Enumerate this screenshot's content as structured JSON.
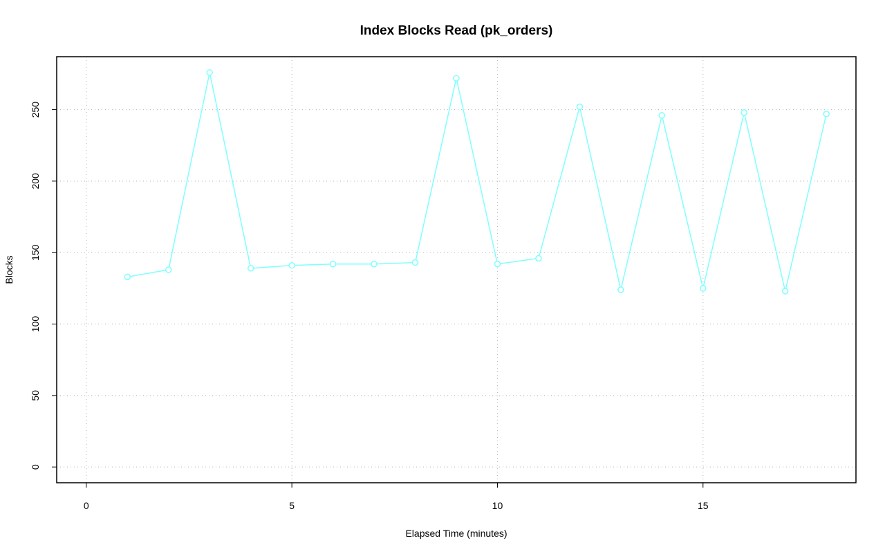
{
  "chart_data": {
    "type": "line",
    "title": "Index Blocks Read (pk_orders)",
    "x_label": "Elapsed Time (minutes)",
    "y_label": "Blocks",
    "x": [
      1,
      2,
      3,
      4,
      5,
      6,
      7,
      8,
      9,
      10,
      11,
      12,
      13,
      14,
      15,
      16,
      17,
      18
    ],
    "series": [
      {
        "color": "#7fffff",
        "values": [
          133,
          138,
          276,
          139,
          141,
          142,
          142,
          143,
          272,
          142,
          146,
          252,
          124,
          246,
          125,
          248,
          123,
          247
        ]
      }
    ],
    "xlim": [
      -0.72,
      18.72
    ],
    "ylim": [
      -11.04,
      287.04
    ],
    "xticks": [
      0,
      5,
      10,
      15
    ],
    "yticks": [
      0,
      50,
      100,
      150,
      200,
      250
    ],
    "grid": true
  }
}
